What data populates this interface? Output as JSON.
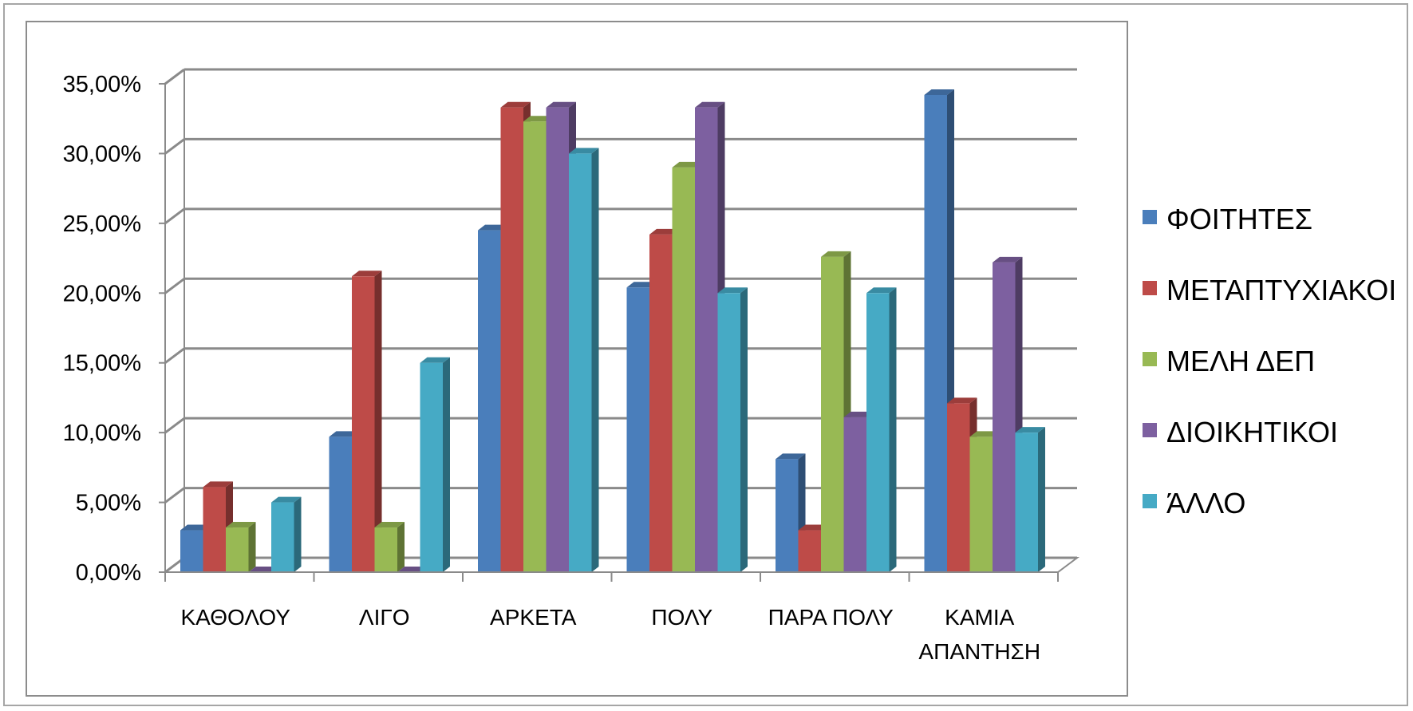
{
  "chart_data": {
    "type": "bar",
    "title": "",
    "xlabel": "",
    "ylabel": "",
    "ylim": [
      0,
      0.35
    ],
    "y_tick_labels": [
      "0,00%",
      "5,00%",
      "10,00%",
      "15,00%",
      "20,00%",
      "25,00%",
      "30,00%",
      "35,00%"
    ],
    "categories": [
      [
        "ΚΑΘΟΛΟΥ"
      ],
      [
        "ΛΙΓΟ"
      ],
      [
        "ΑΡΚΕΤΑ"
      ],
      [
        "ΠΟΛΥ"
      ],
      [
        "ΠΑΡΑ ΠΟΛΥ"
      ],
      [
        "ΚΑΜΙΑ",
        "ΑΠΑΝΤΗΣΗ"
      ]
    ],
    "series": [
      {
        "name": "ΦΟΙΤΗΤΕΣ",
        "color": "#4a7ebb",
        "values": [
          0.03,
          0.097,
          0.245,
          0.204,
          0.081,
          0.342
        ]
      },
      {
        "name": "ΜΕΤΑΠΤΥΧΙΑΚΟΙ",
        "color": "#be4b48",
        "values": [
          0.061,
          0.212,
          0.333,
          0.242,
          0.03,
          0.121
        ]
      },
      {
        "name": "ΜΕΛΗ ΔΕΠ",
        "color": "#98b954",
        "values": [
          0.032,
          0.032,
          0.323,
          0.29,
          0.226,
          0.097
        ]
      },
      {
        "name": "ΔΙΟΙΚΗΤΙΚΟΙ",
        "color": "#7d60a0",
        "values": [
          0.0,
          0.0,
          0.333,
          0.333,
          0.111,
          0.222
        ]
      },
      {
        "name": "ΆΛΛΟ",
        "color": "#46aac5",
        "values": [
          0.05,
          0.15,
          0.3,
          0.2,
          0.2,
          0.1
        ]
      }
    ],
    "grid": true,
    "legend_position": "right",
    "style": "3d-clustered-column"
  }
}
